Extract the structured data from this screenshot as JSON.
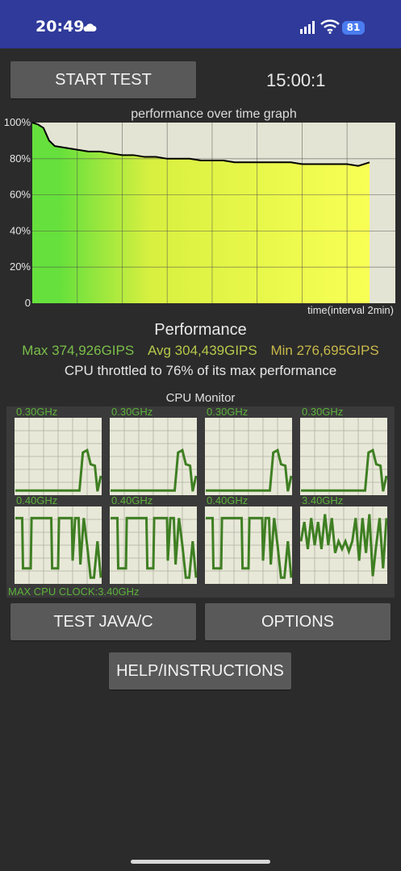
{
  "status_bar": {
    "time": "20:49",
    "battery": "81",
    "icons": [
      "cloud-icon",
      "signal-icon",
      "wifi-icon",
      "battery-icon"
    ]
  },
  "controls": {
    "start_test_label": "START TEST",
    "timer": "15:00:1",
    "test_java_label": "TEST JAVA/C",
    "options_label": "OPTIONS",
    "help_label": "HELP/INSTRUCTIONS"
  },
  "chart_data": {
    "type": "area",
    "title": "performance over time graph",
    "xlabel": "time(interval 2min)",
    "y_ticks": [
      "100%",
      "80%",
      "60%",
      "40%",
      "20%",
      "0"
    ],
    "ylim": [
      0,
      100
    ],
    "xlim": [
      0,
      15
    ],
    "x": [
      0,
      0.25,
      0.5,
      0.75,
      1,
      1.5,
      2,
      2.5,
      3,
      3.5,
      4,
      4.5,
      5,
      5.5,
      6,
      6.5,
      7,
      7.5,
      8,
      8.5,
      9,
      9.5,
      10,
      10.5,
      11,
      11.5,
      12,
      12.5,
      13,
      13.5,
      14,
      14.5,
      15
    ],
    "values": [
      100,
      99,
      97,
      90,
      87,
      86,
      85,
      84,
      84,
      83,
      82,
      82,
      81,
      81,
      80,
      80,
      80,
      79,
      79,
      79,
      78,
      78,
      78,
      78,
      78,
      78,
      77,
      77,
      77,
      77,
      77,
      76,
      78
    ],
    "grid": true,
    "colors": {
      "start": "#66e03c",
      "mid": "#d8f040",
      "end": "#f8ff55",
      "line": "#000000",
      "plot_bg": "#e4e4d4",
      "grid": "#4a4a4a"
    }
  },
  "performance": {
    "heading": "Performance",
    "max": "Max 374,926GIPS",
    "avg": "Avg 304,439GIPS",
    "min": "Min 276,695GIPS",
    "throttle_text": "CPU throttled to 76% of its max performance"
  },
  "cpu_monitor": {
    "title": "CPU Monitor",
    "max_clock": "MAX CPU CLOCK:3.40GHz",
    "cores": [
      {
        "label": "0.30GHz",
        "pattern": "idle-spike"
      },
      {
        "label": "0.30GHz",
        "pattern": "idle-spike"
      },
      {
        "label": "0.30GHz",
        "pattern": "idle-spike"
      },
      {
        "label": "0.30GHz",
        "pattern": "idle-spike"
      },
      {
        "label": "0.40GHz",
        "pattern": "busy"
      },
      {
        "label": "0.40GHz",
        "pattern": "busy"
      },
      {
        "label": "0.40GHz",
        "pattern": "busy"
      },
      {
        "label": "3.40GHz",
        "pattern": "busy-noisy"
      }
    ],
    "line_color": "#3f7f23",
    "bg_color": "#e8e8d8"
  }
}
